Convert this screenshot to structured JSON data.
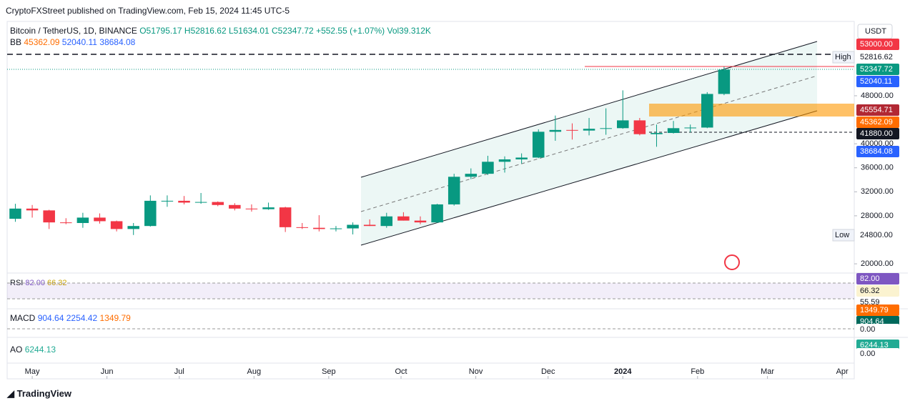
{
  "header": {
    "publisher": "CryptoFXStreet published on TradingView.com, Feb 15, 2024 11:45 UTC-5"
  },
  "legend": {
    "symbol": "Bitcoin / TetherUS, 1D, BINANCE",
    "ohlc": "O51795.17 H52816.62 L51634.01 C52347.72 +552.55 (+1.07%)",
    "volume": "Vol39.312K",
    "bb_name": "BB",
    "bb_values": [
      "45362.09",
      "52040.11",
      "38684.08"
    ]
  },
  "price_scale": {
    "unit": "USDT",
    "high_label": "High",
    "low_label": "Low",
    "labels": [
      "53000.00",
      "52816.62",
      "52347.72",
      "52040.11",
      "45554.71",
      "45362.09",
      "41880.00",
      "38684.08",
      "24800.00"
    ]
  },
  "indicators": {
    "rsi": {
      "name": "RSI",
      "values": [
        "82.00",
        "66.32"
      ],
      "scale_labels": [
        "82.00",
        "66.32",
        "55.59"
      ]
    },
    "macd": {
      "name": "MACD",
      "values": [
        "904.64",
        "2254.42",
        "1349.79"
      ],
      "scale_labels": [
        "1349.79",
        "904.64",
        "0.00"
      ]
    },
    "ao": {
      "name": "AO",
      "values": [
        "6244.13"
      ],
      "scale_labels": [
        "6244.13",
        "0.00"
      ]
    }
  },
  "chart_data": {
    "type": "candlestick",
    "x": [
      -7,
      0,
      7,
      14,
      21,
      28,
      35,
      42,
      49,
      56,
      63,
      70,
      77,
      84,
      91,
      98,
      105,
      112,
      119,
      126,
      133,
      140,
      147,
      154,
      161,
      168,
      175,
      182,
      189,
      196,
      203,
      210,
      217,
      224,
      231,
      238,
      245,
      252,
      259,
      266,
      273,
      280,
      287
    ],
    "open": [
      27500,
      29200,
      28900,
      26900,
      26800,
      27700,
      27100,
      25800,
      26300,
      30500,
      30500,
      30200,
      30300,
      29800,
      29200,
      29100,
      29400,
      26100,
      26000,
      25800,
      25900,
      26500,
      26300,
      27900,
      27200,
      26900,
      29900,
      34500,
      35000,
      37000,
      37400,
      37700,
      42000,
      42300,
      42200,
      42500,
      42600,
      43900,
      41600,
      41800,
      42600,
      42700,
      48300
    ],
    "high": [
      30000,
      29800,
      29000,
      27600,
      28500,
      28400,
      27200,
      26800,
      31400,
      31400,
      31300,
      31800,
      30400,
      30100,
      29900,
      30200,
      29500,
      26800,
      28100,
      26300,
      26900,
      27400,
      28500,
      28600,
      27900,
      30000,
      35000,
      35900,
      38000,
      37900,
      38400,
      42400,
      44700,
      43400,
      44300,
      45900,
      48900,
      44300,
      43200,
      43800,
      43200,
      48600,
      52820
    ],
    "low": [
      27000,
      27700,
      25800,
      26600,
      26000,
      26700,
      25400,
      24800,
      26200,
      29500,
      29900,
      30000,
      29600,
      28900,
      28700,
      29000,
      25300,
      25800,
      25400,
      25400,
      24900,
      26300,
      26000,
      27200,
      26600,
      26800,
      29700,
      34100,
      34800,
      35200,
      36700,
      37600,
      40500,
      40700,
      41400,
      41500,
      42500,
      41400,
      39500,
      41700,
      41900,
      42600,
      48100
    ],
    "close": [
      29200,
      28900,
      26900,
      26800,
      27700,
      27100,
      25800,
      26300,
      30500,
      30500,
      30200,
      30300,
      29800,
      29200,
      29100,
      29400,
      26100,
      26000,
      25800,
      25900,
      26500,
      26300,
      27900,
      27200,
      26900,
      29900,
      34500,
      35000,
      37000,
      37400,
      37700,
      42000,
      42300,
      42200,
      42500,
      42600,
      43900,
      41600,
      41800,
      42600,
      42700,
      48300,
      52350
    ],
    "up_color": "#089981",
    "down_color": "#f23645",
    "xlim": [
      -10.4,
      341
    ],
    "xticks": [
      {
        "value": 0,
        "label": "May"
      },
      {
        "value": 31,
        "label": "Jun"
      },
      {
        "value": 61,
        "label": "Jul"
      },
      {
        "value": 92,
        "label": "Aug"
      },
      {
        "value": 123,
        "label": "Sep"
      },
      {
        "value": 153,
        "label": "Oct"
      },
      {
        "value": 184,
        "label": "Nov"
      },
      {
        "value": 214,
        "label": "Dec"
      },
      {
        "value": 245,
        "label": "2024"
      },
      {
        "value": 276,
        "label": "Feb"
      },
      {
        "value": 305,
        "label": "Mar"
      },
      {
        "value": 336,
        "label": "Apr"
      }
    ],
    "ylim": [
      18700,
      60380
    ],
    "yticks": [
      {
        "value": 48000,
        "label": "48000.00"
      },
      {
        "value": 40000,
        "label": "40000.00"
      },
      {
        "value": 36000,
        "label": "36000.00"
      },
      {
        "value": 32000,
        "label": "32000.00"
      },
      {
        "value": 28000,
        "label": "28000.00"
      },
      {
        "value": 20000,
        "label": "20000.00"
      }
    ]
  },
  "footer": {
    "brand": "TradingView"
  }
}
